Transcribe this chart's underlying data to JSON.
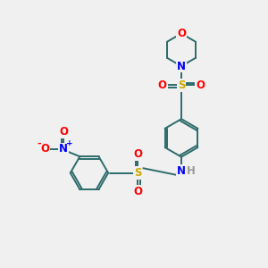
{
  "bg_color": "#f0f0f0",
  "bond_color": "#2d6b6b",
  "atom_colors": {
    "O": "#ff0000",
    "N": "#0000ff",
    "S": "#ccaa00",
    "H": "#999999",
    "C": "#2d6b6b",
    "plus": "#0000ff",
    "minus": "#ff0000"
  },
  "bond_width": 1.4,
  "font_size_atom": 8.5,
  "font_size_small": 6.5
}
